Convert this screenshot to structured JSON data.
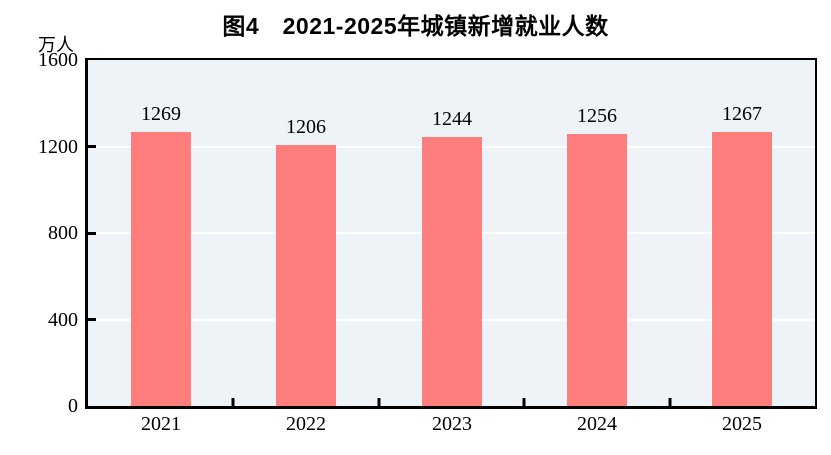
{
  "figure": {
    "title": "图4　2021-2025年城镇新增就业人数",
    "unit_label": "万人"
  },
  "chart_data": {
    "type": "bar",
    "title": "图4　2021-2025年城镇新增就业人数",
    "ylabel_unit": "万人",
    "categories": [
      "2021",
      "2022",
      "2023",
      "2024",
      "2025"
    ],
    "values": [
      1269,
      1206,
      1244,
      1256,
      1267
    ],
    "ylim": [
      0,
      1600
    ],
    "yticks": [
      0,
      400,
      800,
      1200,
      1600
    ],
    "grid": "horizontal",
    "legend_position": "none",
    "colors": {
      "bar": "#FE7E7E",
      "plot_background": "#EDF3F6",
      "gridline": "#FFFFFF",
      "axis": "#000000",
      "text": "#000000",
      "page_background": "#FFFFFF"
    }
  }
}
